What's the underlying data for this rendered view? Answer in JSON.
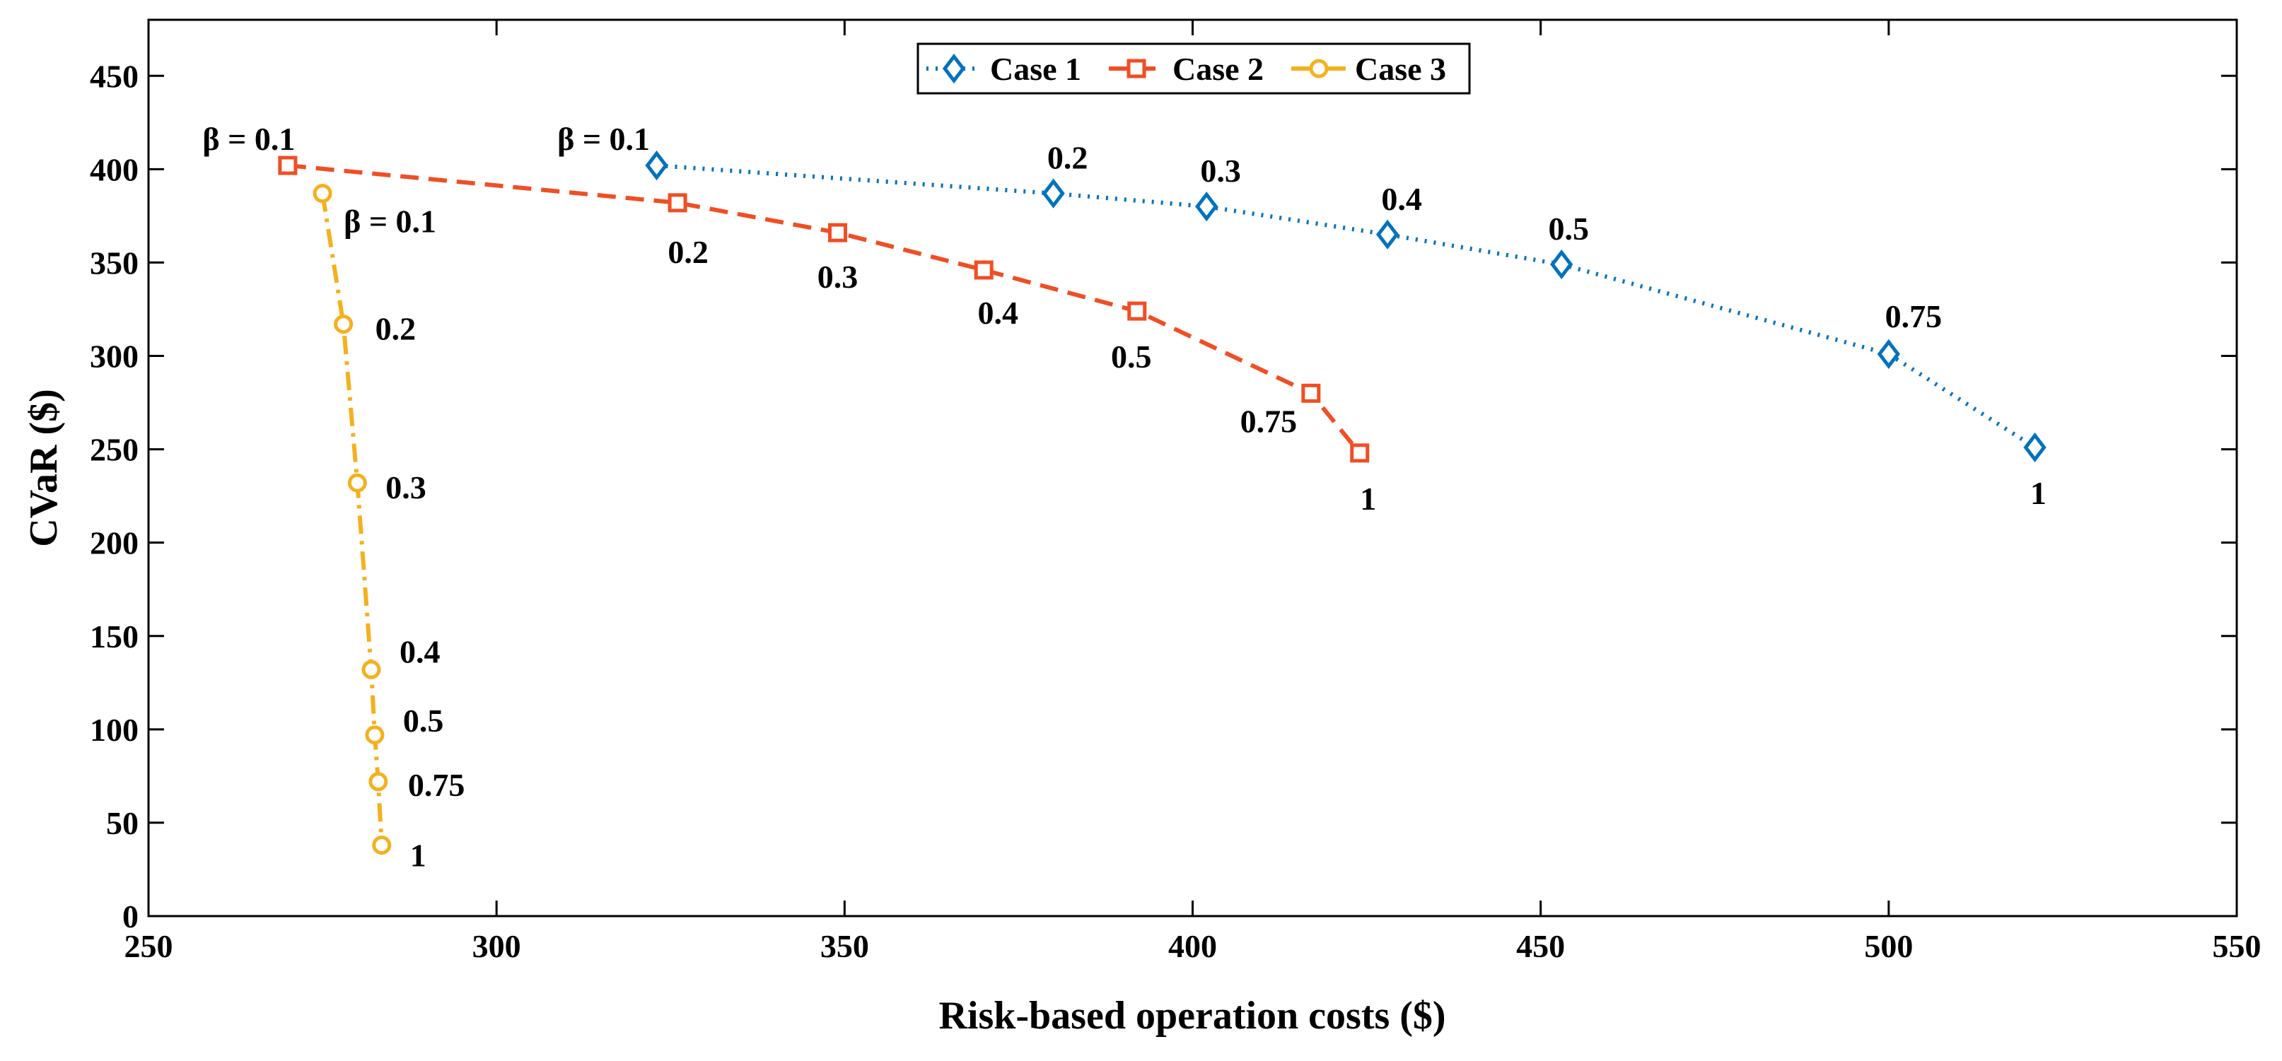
{
  "chart_data": {
    "type": "line",
    "xlabel": "Risk-based operation costs ($)",
    "ylabel": "CVaR ($)",
    "xlim": [
      250,
      550
    ],
    "ylim": [
      0,
      480
    ],
    "xticks": [
      250,
      300,
      350,
      400,
      450,
      500,
      550
    ],
    "yticks": [
      0,
      50,
      100,
      150,
      200,
      250,
      300,
      350,
      400,
      450
    ],
    "grid": false,
    "legend_position": "top-center",
    "series": [
      {
        "name": "Case 1",
        "color": "#0072BD",
        "line_style": "dotted",
        "marker": "diamond",
        "x": [
          323,
          380,
          402,
          428,
          453,
          500,
          521
        ],
        "y": [
          402,
          387,
          380,
          365,
          349,
          301,
          251
        ],
        "labels": [
          "β = 0.1",
          "0.2",
          "0.3",
          "0.4",
          "0.5",
          "0.75",
          "1"
        ]
      },
      {
        "name": "Case 2",
        "color": "#F04E23",
        "line_style": "dashed",
        "marker": "square",
        "x": [
          270,
          326,
          349,
          370,
          392,
          417,
          424
        ],
        "y": [
          402,
          382,
          366,
          346,
          324,
          280,
          248
        ],
        "labels": [
          "β = 0.1",
          "0.2",
          "0.3",
          "0.4",
          "0.5",
          "0.75",
          "1"
        ]
      },
      {
        "name": "Case 3",
        "color": "#F5B01E",
        "line_style": "dash-dot",
        "marker": "circle",
        "x": [
          275,
          278,
          280,
          282,
          282.5,
          283,
          283.5
        ],
        "y": [
          387,
          317,
          232,
          132,
          97,
          72,
          38
        ],
        "labels": [
          "β = 0.1",
          "0.2",
          "0.3",
          "0.4",
          "0.5",
          "0.75",
          "1"
        ]
      }
    ]
  }
}
